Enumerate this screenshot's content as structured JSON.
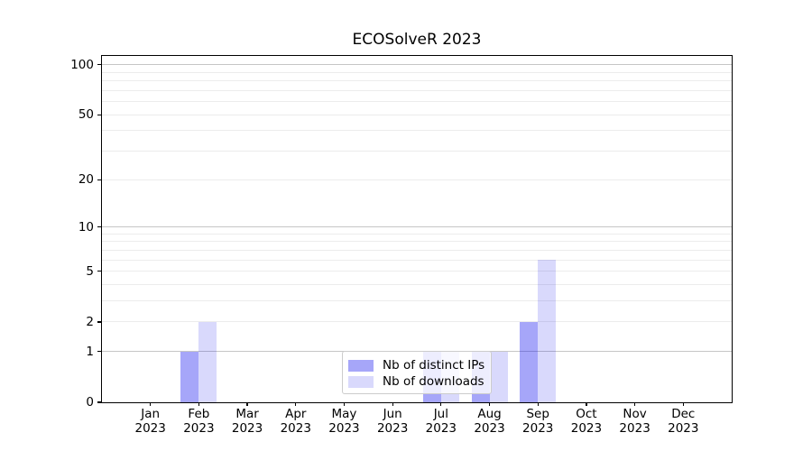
{
  "chart_data": {
    "type": "bar",
    "title": "ECOSolveR 2023",
    "categories": [
      "Jan",
      "Feb",
      "Mar",
      "Apr",
      "May",
      "Jun",
      "Jul",
      "Aug",
      "Sep",
      "Oct",
      "Nov",
      "Dec"
    ],
    "x_year_line": "2023",
    "series": [
      {
        "name": "Nb of distinct IPs",
        "values": [
          0,
          1,
          0,
          0,
          0,
          0,
          1,
          1,
          2,
          0,
          0,
          0
        ],
        "color": "#0000ee",
        "alpha": 0.35
      },
      {
        "name": "Nb of downloads",
        "values": [
          0,
          2,
          0,
          0,
          0,
          0,
          1,
          1,
          6,
          0,
          0,
          0
        ],
        "color": "#0000ee",
        "alpha": 0.15
      }
    ],
    "xlabel": "",
    "ylabel": "",
    "yscale": "log1p",
    "ylim": [
      0,
      113
    ],
    "y_ticks": [
      0,
      1,
      2,
      5,
      10,
      20,
      50,
      100
    ],
    "y_tick_labels": [
      "0",
      "1",
      "2",
      "5",
      "10",
      "20",
      "50",
      "100"
    ],
    "grid": true,
    "grid_major_values": [
      1,
      10,
      100
    ],
    "grid_minor_values": [
      2,
      3,
      4,
      5,
      6,
      7,
      8,
      9,
      20,
      30,
      40,
      50,
      60,
      70,
      80,
      90
    ],
    "legend_position": "lower center",
    "colors": {
      "grid_major": "#c6c6c6",
      "grid_minor": "#ececec",
      "spine": "#000000",
      "text": "#000000",
      "legend_border": "#cccccc",
      "legend_bg": "rgba(255,255,255,0.8)"
    }
  }
}
